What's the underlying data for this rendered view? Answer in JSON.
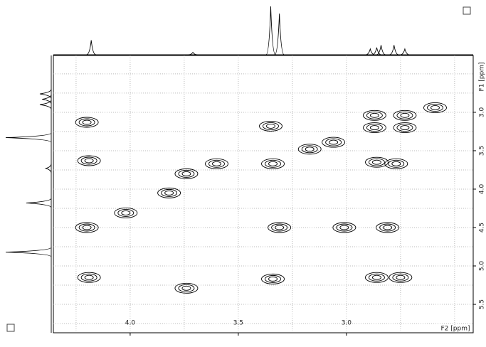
{
  "chart_data": {
    "type": "contour",
    "x_label": "F2 [ppm]",
    "y_label": "F1 [ppm]",
    "xlim": [
      4.355,
      2.414
    ],
    "ylim": [
      2.26,
      5.87
    ],
    "xticks": [
      {
        "value": 4.0,
        "label": "4.0"
      },
      {
        "value": 3.5,
        "label": "3.5"
      },
      {
        "value": 3.0,
        "label": "3.0"
      }
    ],
    "yticks": [
      {
        "value": 3.0,
        "label": "3.0"
      },
      {
        "value": 3.5,
        "label": "3.5"
      },
      {
        "value": 4.0,
        "label": "4.0"
      },
      {
        "value": 4.5,
        "label": "4.5"
      },
      {
        "value": 5.0,
        "label": "5.0"
      },
      {
        "value": 5.5,
        "label": "5.5"
      }
    ],
    "xgrid": [
      4.25,
      4.0,
      3.75,
      3.5,
      3.25,
      3.0,
      2.75,
      2.5
    ],
    "ygrid": [
      2.5,
      2.75,
      3.0,
      3.25,
      3.5,
      3.75,
      4.0,
      4.25,
      4.5,
      4.75,
      5.0,
      5.25,
      5.5,
      5.75
    ],
    "grid": true,
    "color": "#000000",
    "peaks": {
      "x": [
        4.2,
        4.2,
        4.19,
        4.19,
        4.02,
        3.82,
        3.74,
        3.6,
        3.34,
        3.35,
        3.31,
        3.34,
        3.17,
        3.06,
        3.01,
        2.87,
        2.87,
        2.73,
        2.73,
        2.81,
        2.86,
        2.77,
        2.86,
        2.75,
        2.59,
        3.74
      ],
      "y": [
        4.5,
        3.13,
        3.63,
        5.15,
        4.31,
        4.05,
        3.8,
        3.67,
        3.67,
        3.18,
        4.5,
        5.17,
        3.48,
        3.39,
        4.5,
        3.04,
        3.2,
        3.04,
        3.2,
        4.5,
        3.65,
        3.67,
        5.15,
        5.15,
        2.94,
        5.29
      ]
    },
    "f2_projection": {
      "x": [
        4.18,
        3.71,
        3.35,
        3.31,
        2.89,
        2.86,
        2.84,
        2.78,
        2.73
      ],
      "heights": [
        0.3,
        0.05,
        1.0,
        0.85,
        0.12,
        0.15,
        0.2,
        0.2,
        0.12
      ]
    },
    "f1_projection": {
      "y": [
        2.76,
        2.83,
        2.9,
        3.33,
        3.73,
        4.18,
        4.82
      ],
      "heights": [
        0.25,
        0.2,
        0.25,
        1.0,
        0.12,
        0.55,
        1.0
      ]
    }
  }
}
